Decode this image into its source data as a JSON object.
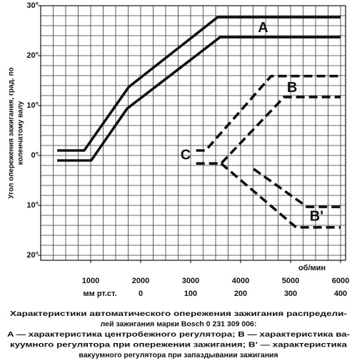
{
  "chart_data": {
    "type": "line",
    "y_label": [
      "Угол опережения зажигания, град. по",
      "коленчатому валу"
    ],
    "x_label": "об/мин",
    "x2_label": "мм рт.ст.",
    "xlim": [
      0,
      6100
    ],
    "xticks": [
      1000,
      2000,
      3000,
      4000,
      5000,
      6000
    ],
    "x2lim": [
      -200,
      410
    ],
    "x2ticks": [
      0,
      100,
      200,
      300,
      400
    ],
    "ylim": [
      -21,
      30
    ],
    "yticks": [
      {
        "value": 30,
        "label": "30°"
      },
      {
        "value": 20,
        "label": "20°"
      },
      {
        "value": 10,
        "label": "10°"
      },
      {
        "value": 0,
        "label": "0°"
      },
      {
        "value": -10,
        "label": "10°"
      },
      {
        "value": -20,
        "label": "20°"
      }
    ],
    "grid": true,
    "minor_grid": {
      "x": 250,
      "y": 2
    },
    "series": [
      {
        "color": "#111111",
        "dash": false,
        "x": [
          330,
          870,
          1760,
          3540,
          6000
        ],
        "values": [
          1,
          1,
          13.7,
          27.7,
          27.7
        ]
      },
      {
        "color": "#111111",
        "dash": false,
        "x": [
          330,
          1010,
          1730,
          3590,
          6000
        ],
        "values": [
          -1,
          -1,
          9.4,
          23.7,
          23.7
        ]
      },
      {
        "color": "#111111",
        "dash": true,
        "x": [
          3110,
          3300,
          4610,
          6000
        ],
        "values": [
          1,
          1,
          15.9,
          15.9
        ]
      },
      {
        "color": "#111111",
        "dash": true,
        "x": [
          3110,
          3610,
          4870,
          6000
        ],
        "values": [
          -1.6,
          -1.6,
          11.7,
          11.7
        ]
      },
      {
        "color": "#111111",
        "dash": true,
        "x": [
          3610,
          5110,
          6000
        ],
        "values": [
          -1.6,
          -14.4,
          -14.4
        ]
      },
      {
        "color": "#111111",
        "dash": true,
        "x": [
          4260,
          5330,
          6000
        ],
        "values": [
          -2.7,
          -10.3,
          -10.3
        ]
      }
    ],
    "annotations": [
      {
        "text": "A",
        "x": 4450,
        "y": 25.5
      },
      {
        "text": "B",
        "x": 5030,
        "y": 13.5
      },
      {
        "text": "C",
        "x": 2900,
        "y": 0
      },
      {
        "text": "B'",
        "x": 5520,
        "y": -12.3
      }
    ],
    "caption": [
      "Характеристики автоматического опережения зажигания распредели-",
      "лей зажигания марки Bosch 0 231 309 006:",
      "A — характеристика центробежного регулятора; B — характеристика ва-",
      "куумного регулятора при опережении зажигания; B' — характеристика",
      "вакуумного регулятора при запаздывании зажигания"
    ]
  }
}
